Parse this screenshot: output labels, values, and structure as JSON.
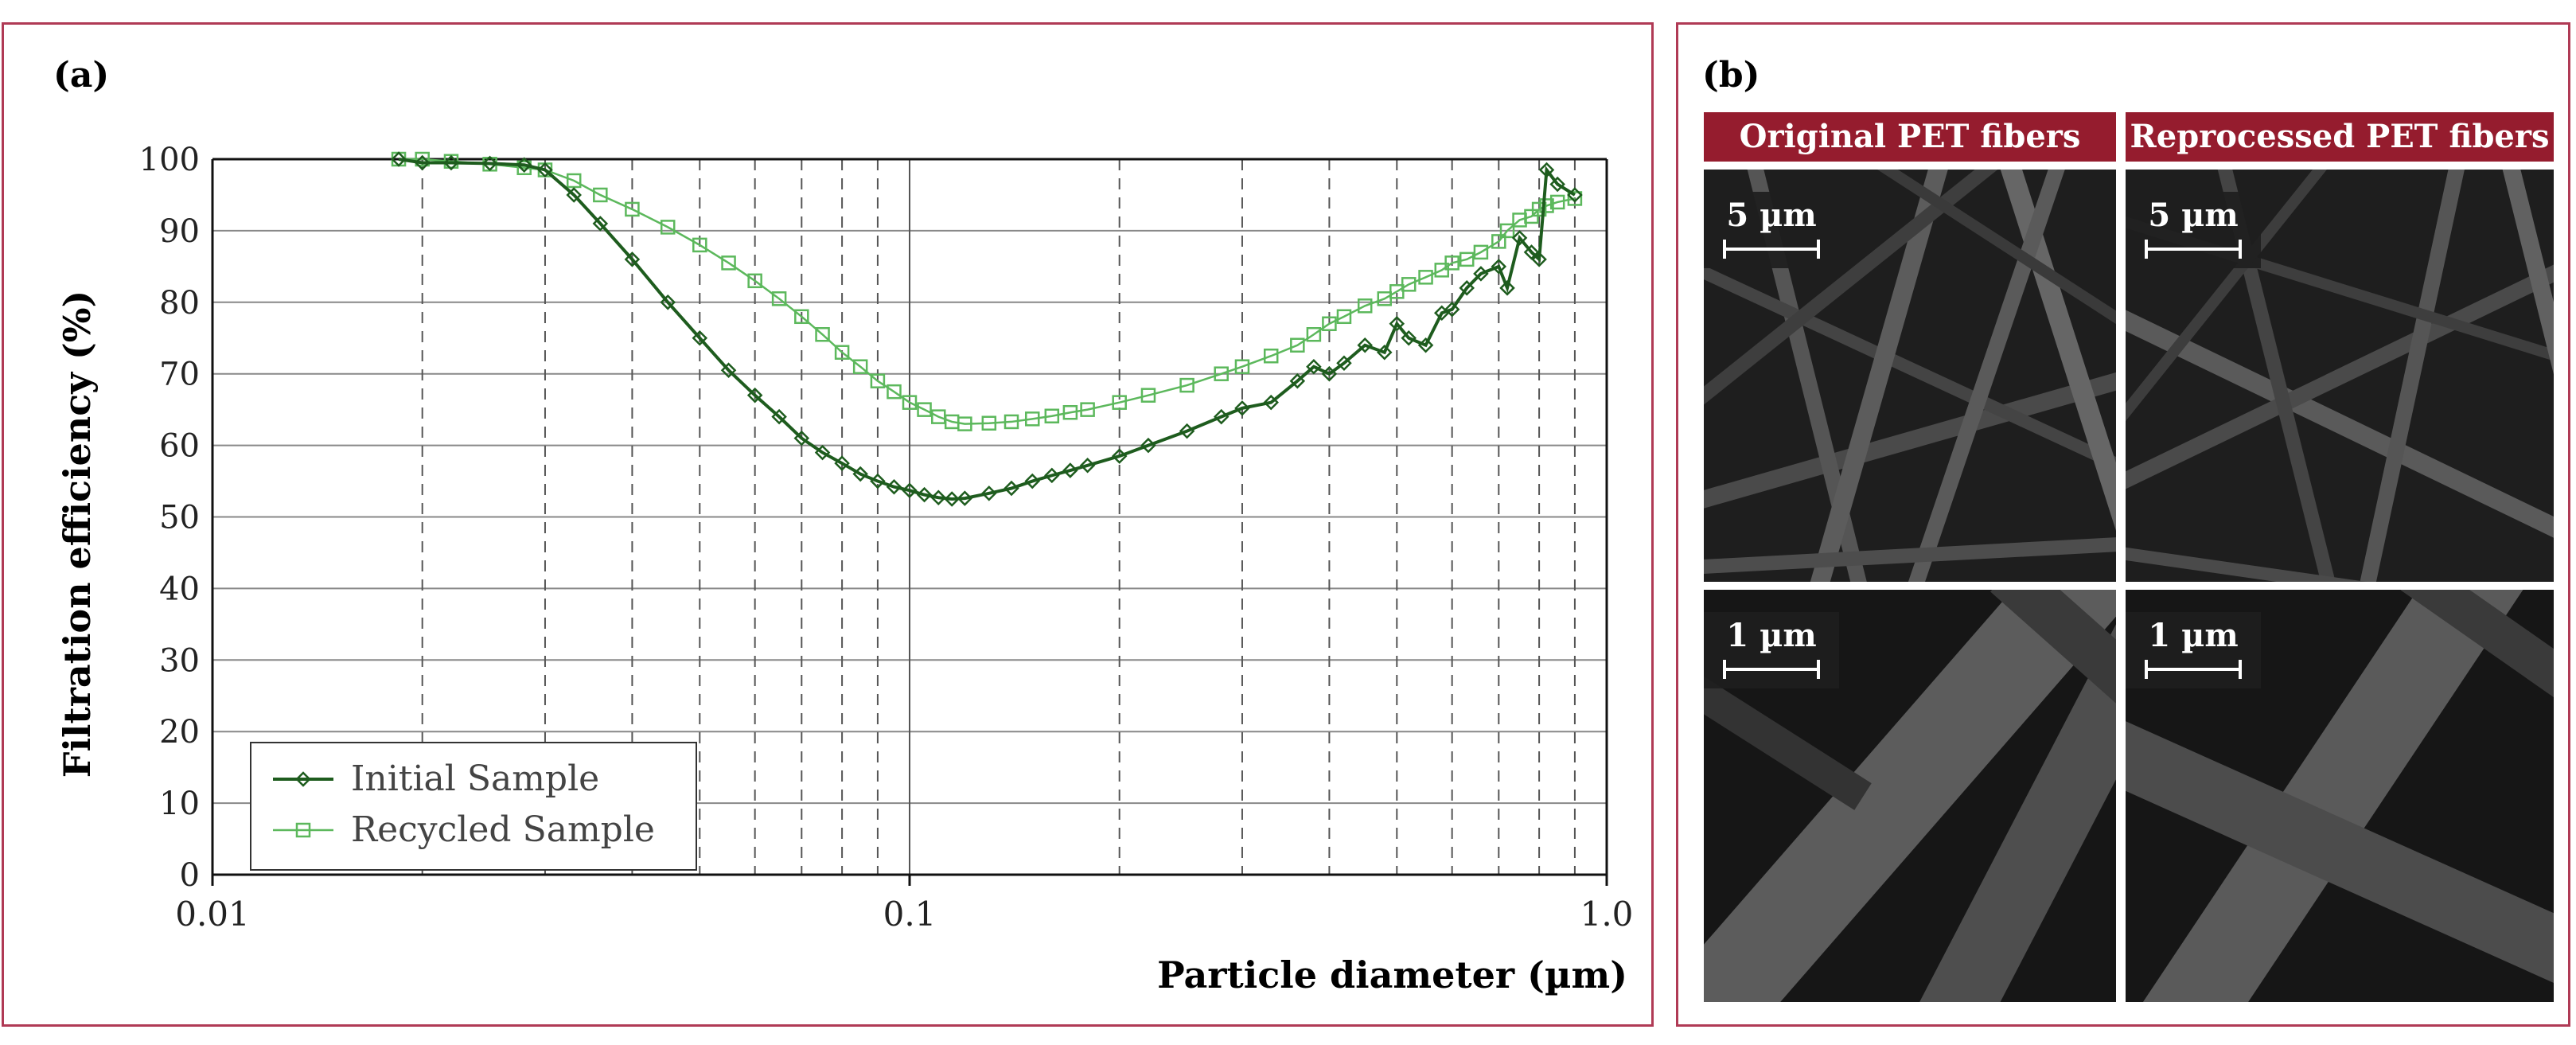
{
  "panel_a": {
    "label": "(a)",
    "chart_data": {
      "type": "line",
      "xscale": "log",
      "xlabel": "Particle diameter (µm)",
      "ylabel": "Filtration efficiency (%)",
      "xlim": [
        0.01,
        1.0
      ],
      "ylim": [
        0,
        100
      ],
      "x_ticks": [
        0.01,
        0.1,
        1.0
      ],
      "x_tick_labels": [
        "0.01",
        "0.1",
        "1.0"
      ],
      "y_ticks": [
        0,
        10,
        20,
        30,
        40,
        50,
        60,
        70,
        80,
        90,
        100
      ],
      "grid": true,
      "legend_location": "bottom-left",
      "series": [
        {
          "name": "Initial Sample",
          "color": "#1e5c1e",
          "marker": "diamond",
          "x": [
            0.0185,
            0.02,
            0.022,
            0.025,
            0.028,
            0.03,
            0.033,
            0.036,
            0.04,
            0.045,
            0.05,
            0.055,
            0.06,
            0.065,
            0.07,
            0.075,
            0.08,
            0.085,
            0.09,
            0.095,
            0.1,
            0.105,
            0.11,
            0.115,
            0.12,
            0.13,
            0.14,
            0.15,
            0.16,
            0.17,
            0.18,
            0.2,
            0.22,
            0.25,
            0.28,
            0.3,
            0.33,
            0.36,
            0.38,
            0.4,
            0.42,
            0.45,
            0.48,
            0.5,
            0.52,
            0.55,
            0.58,
            0.6,
            0.63,
            0.66,
            0.7,
            0.72,
            0.75,
            0.78,
            0.8,
            0.82,
            0.85,
            0.9
          ],
          "y": [
            100,
            99.5,
            99.5,
            99.4,
            99.2,
            98.5,
            95,
            91,
            86,
            80,
            75,
            70.5,
            67,
            64,
            61,
            59,
            57.5,
            56,
            55,
            54.2,
            53.7,
            53.1,
            52.7,
            52.5,
            52.6,
            53.3,
            54,
            55,
            55.8,
            56.5,
            57.2,
            58.5,
            60,
            62,
            64,
            65.2,
            66,
            69,
            71,
            70,
            71.5,
            74,
            73,
            77,
            75,
            74,
            78.5,
            79,
            82,
            84,
            85,
            82,
            89,
            87,
            86,
            98.5,
            96.5,
            95
          ]
        },
        {
          "name": "Recycled Sample",
          "color": "#5cb85c",
          "marker": "square",
          "x": [
            0.0185,
            0.02,
            0.022,
            0.025,
            0.028,
            0.03,
            0.033,
            0.036,
            0.04,
            0.045,
            0.05,
            0.055,
            0.06,
            0.065,
            0.07,
            0.075,
            0.08,
            0.085,
            0.09,
            0.095,
            0.1,
            0.105,
            0.11,
            0.115,
            0.12,
            0.13,
            0.14,
            0.15,
            0.16,
            0.17,
            0.18,
            0.2,
            0.22,
            0.25,
            0.28,
            0.3,
            0.33,
            0.36,
            0.38,
            0.4,
            0.42,
            0.45,
            0.48,
            0.5,
            0.52,
            0.55,
            0.58,
            0.6,
            0.63,
            0.66,
            0.7,
            0.72,
            0.75,
            0.78,
            0.8,
            0.82,
            0.85,
            0.9
          ],
          "y": [
            100,
            100,
            99.7,
            99.3,
            98.8,
            98.5,
            97,
            95,
            93,
            90.5,
            88,
            85.5,
            83,
            80.5,
            78,
            75.5,
            73,
            71,
            69,
            67.5,
            66,
            65,
            64,
            63.3,
            63,
            63.1,
            63.3,
            63.7,
            64.1,
            64.6,
            65,
            66,
            67,
            68.4,
            70,
            71,
            72.5,
            74,
            75.5,
            77,
            78,
            79.5,
            80.5,
            81.5,
            82.5,
            83.5,
            84.5,
            85.5,
            86,
            87,
            88.5,
            90,
            91.5,
            92,
            93,
            93.5,
            94,
            94.5
          ]
        }
      ]
    }
  },
  "panel_b": {
    "label": "(b)",
    "col_headers": [
      "Original PET fibers",
      "Reprocessed PET fibers"
    ],
    "scale_labels": [
      "5 µm",
      "5 µm",
      "1 µm",
      "1 µm"
    ]
  }
}
